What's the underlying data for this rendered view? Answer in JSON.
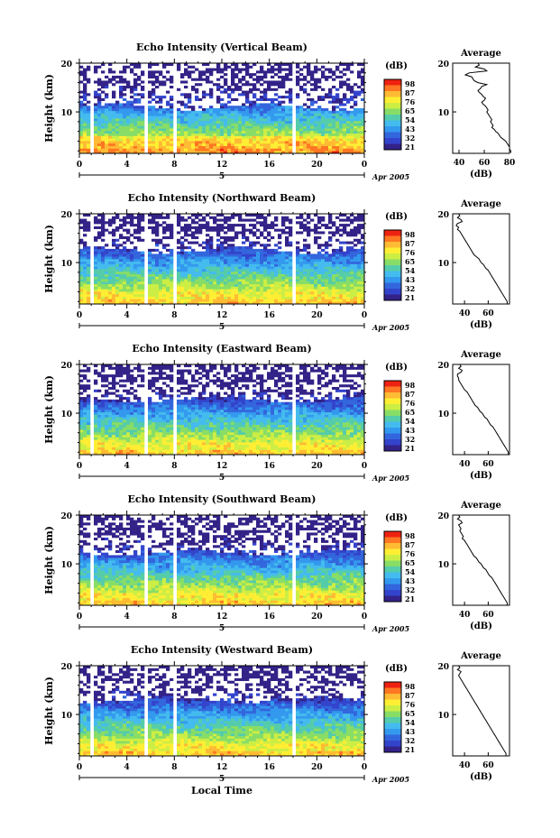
{
  "panels": [
    {
      "title": "Echo Intensity (Vertical Beam)",
      "avg_xticks": [
        "40",
        "60",
        "80"
      ],
      "profile_x": [
        55,
        56,
        53,
        60,
        62,
        48,
        45,
        50,
        51,
        52,
        55,
        62,
        58,
        57,
        55,
        56,
        58,
        59,
        61,
        60,
        58,
        59,
        61,
        62,
        63,
        62,
        63,
        64,
        65,
        66,
        65,
        66,
        67,
        66,
        68,
        69,
        71,
        72,
        73,
        75,
        77,
        78,
        79,
        80,
        80,
        81,
        81
      ],
      "profile_y": [
        20,
        19.6,
        19.2,
        18.8,
        18.4,
        18,
        17.6,
        17.2,
        16.8,
        16.4,
        16,
        15.6,
        15.2,
        14.8,
        14.4,
        14,
        13.6,
        13.2,
        12.8,
        12.4,
        12,
        11.6,
        11.2,
        10.8,
        10.4,
        10,
        9.6,
        9.2,
        8.8,
        8.4,
        8,
        7.6,
        7.2,
        6.8,
        6.4,
        6,
        5.6,
        5.2,
        4.8,
        4.4,
        4,
        3.6,
        3.2,
        2.8,
        2.4,
        2,
        1.6
      ],
      "avg_xlim": [
        35,
        80
      ],
      "upper_white": 18.0,
      "cloud_top": 11.0
    },
    {
      "title": "Echo Intensity (Northward Beam)",
      "avg_xticks": [
        "40",
        "60"
      ],
      "profile_x": [
        35,
        36,
        34,
        37,
        38,
        34,
        33,
        35,
        34,
        36,
        37,
        38,
        39,
        40,
        41,
        42,
        43,
        44,
        45,
        46,
        47,
        48,
        50,
        52,
        53,
        54,
        56,
        57,
        58,
        60,
        61,
        62,
        63,
        64,
        65,
        66,
        67,
        68,
        69,
        70,
        71,
        72,
        73,
        74,
        75,
        76,
        76
      ],
      "profile_y": [
        20,
        19.6,
        19.2,
        18.8,
        18.4,
        18,
        17.6,
        17.2,
        16.8,
        16.4,
        16,
        15.6,
        15.2,
        14.8,
        14.4,
        14,
        13.6,
        13.2,
        12.8,
        12.4,
        12,
        11.6,
        11.2,
        10.8,
        10.4,
        10,
        9.6,
        9.2,
        8.8,
        8.4,
        8,
        7.6,
        7.2,
        6.8,
        6.4,
        6,
        5.6,
        5.2,
        4.8,
        4.4,
        4,
        3.6,
        3.2,
        2.8,
        2.4,
        2,
        1.6
      ],
      "avg_xlim": [
        30,
        78
      ],
      "upper_white": 16.0,
      "cloud_top": 12.5
    },
    {
      "title": "Echo Intensity (Eastward Beam)",
      "avg_xticks": [
        "40",
        "60"
      ],
      "profile_x": [
        36,
        37,
        35,
        38,
        37,
        34,
        34,
        35,
        35,
        36,
        37,
        38,
        39,
        40,
        42,
        43,
        44,
        45,
        46,
        47,
        48,
        49,
        51,
        52,
        53,
        55,
        56,
        57,
        59,
        60,
        61,
        62,
        64,
        65,
        66,
        67,
        68,
        69,
        70,
        71,
        72,
        73,
        74,
        75,
        76,
        77,
        77
      ],
      "profile_y": [
        20,
        19.6,
        19.2,
        18.8,
        18.4,
        18,
        17.6,
        17.2,
        16.8,
        16.4,
        16,
        15.6,
        15.2,
        14.8,
        14.4,
        14,
        13.6,
        13.2,
        12.8,
        12.4,
        12,
        11.6,
        11.2,
        10.8,
        10.4,
        10,
        9.6,
        9.2,
        8.8,
        8.4,
        8,
        7.6,
        7.2,
        6.8,
        6.4,
        6,
        5.6,
        5.2,
        4.8,
        4.4,
        4,
        3.6,
        3.2,
        2.8,
        2.4,
        2,
        1.6
      ],
      "avg_xlim": [
        30,
        78
      ],
      "upper_white": 16.5,
      "cloud_top": 12.8
    },
    {
      "title": "Echo Intensity (Southward Beam)",
      "avg_xticks": [
        "40",
        "60"
      ],
      "profile_x": [
        35,
        36,
        34,
        37,
        38,
        35,
        36,
        37,
        36,
        37,
        38,
        39,
        38,
        40,
        41,
        42,
        43,
        44,
        45,
        46,
        47,
        48,
        50,
        51,
        52,
        54,
        55,
        56,
        58,
        59,
        60,
        61,
        63,
        64,
        65,
        66,
        67,
        68,
        69,
        70,
        71,
        72,
        73,
        74,
        75,
        76,
        76
      ],
      "profile_y": [
        20,
        19.6,
        19.2,
        18.8,
        18.4,
        18,
        17.6,
        17.2,
        16.8,
        16.4,
        16,
        15.6,
        15.2,
        14.8,
        14.4,
        14,
        13.6,
        13.2,
        12.8,
        12.4,
        12,
        11.6,
        11.2,
        10.8,
        10.4,
        10,
        9.6,
        9.2,
        8.8,
        8.4,
        8,
        7.6,
        7.2,
        6.8,
        6.4,
        6,
        5.6,
        5.2,
        4.8,
        4.4,
        4,
        3.6,
        3.2,
        2.8,
        2.4,
        2,
        1.6
      ],
      "avg_xlim": [
        30,
        78
      ],
      "upper_white": 16.0,
      "cloud_top": 12.2
    },
    {
      "title": "Echo Intensity (Westward Beam)",
      "avg_xticks": [
        "40",
        "60"
      ],
      "profile_x": [
        35,
        36,
        34,
        37,
        36,
        35,
        36,
        37,
        38,
        39,
        40,
        41,
        42,
        43,
        44,
        45,
        46,
        47,
        48,
        49,
        50,
        51,
        52,
        53,
        54,
        55,
        56,
        57,
        58,
        59,
        60,
        61,
        62,
        63,
        64,
        65,
        66,
        67,
        68,
        69,
        70,
        71,
        72,
        73,
        74,
        75,
        75
      ],
      "profile_y": [
        20,
        19.6,
        19.2,
        18.8,
        18.4,
        18,
        17.6,
        17.2,
        16.8,
        16.4,
        16,
        15.6,
        15.2,
        14.8,
        14.4,
        14,
        13.6,
        13.2,
        12.8,
        12.4,
        12,
        11.6,
        11.2,
        10.8,
        10.4,
        10,
        9.6,
        9.2,
        8.8,
        8.4,
        8,
        7.6,
        7.2,
        6.8,
        6.4,
        6,
        5.6,
        5.2,
        4.8,
        4.4,
        4,
        3.6,
        3.2,
        2.8,
        2.4,
        2,
        1.6
      ],
      "avg_xlim": [
        30,
        78
      ],
      "upper_white": 16.5,
      "cloud_top": 13.0
    }
  ],
  "chart_data": {
    "type": "heatmap",
    "ylabel": "Height (km)",
    "xlabel": "Local Time",
    "colorbar_unit": "(dB)",
    "colorbar_ticks": [
      "98",
      "87",
      "76",
      "65",
      "54",
      "43",
      "32",
      "21"
    ],
    "colorbar_colors": [
      "#ee2211",
      "#ff7722",
      "#ffbb33",
      "#ffee33",
      "#ccee44",
      "#88dd66",
      "#55ccaa",
      "#44bbee",
      "#3399ee",
      "#3366dd",
      "#3344cc",
      "#332288"
    ],
    "time_ticks": [
      "0",
      "4",
      "8",
      "12",
      "16",
      "20",
      "0"
    ],
    "day_label": "5",
    "date_label": "Apr 2005",
    "height_ticks": [
      "20",
      "10"
    ],
    "ylim_km": [
      1.5,
      20.0
    ],
    "xlim_hours": [
      0,
      24
    ],
    "data_gaps_hours": [
      [
        0.9,
        1.2
      ],
      [
        5.6,
        5.8
      ],
      [
        7.8,
        8.2
      ],
      [
        17.9,
        18.1
      ]
    ],
    "avg_title": "Average",
    "avg_xlabel": "(dB)"
  }
}
